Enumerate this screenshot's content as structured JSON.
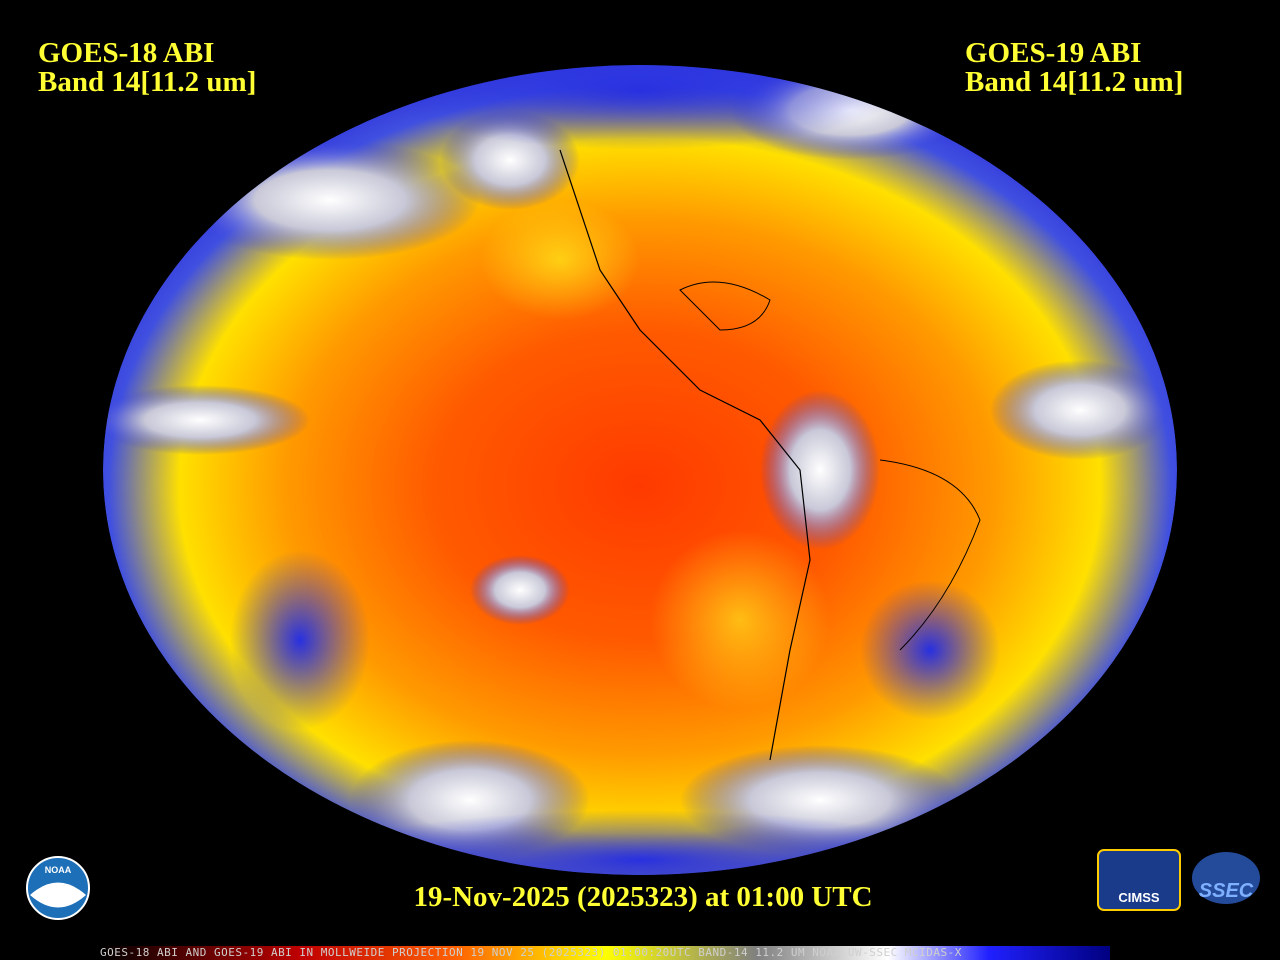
{
  "header": {
    "left": {
      "line1": "GOES-18 ABI",
      "line2": "Band 14[11.2 um]"
    },
    "right": {
      "line1": "GOES-19 ABI",
      "line2": "Band 14[11.2 um]"
    }
  },
  "timestamp": "19-Nov-2025 (2025323) at 01:00 UTC",
  "footer": "GOES-18 ABI AND GOES-19 ABI IN MOLLWEIDE PROJECTION 19 NOV 25 (2025323) 01:00:20UTC BAND-14 11.2 UM NOAA UW-SSEC MCIDAS-X",
  "logos": {
    "noaa": "NOAA",
    "cimss": "CIMSS",
    "ssec": "SSEC"
  }
}
